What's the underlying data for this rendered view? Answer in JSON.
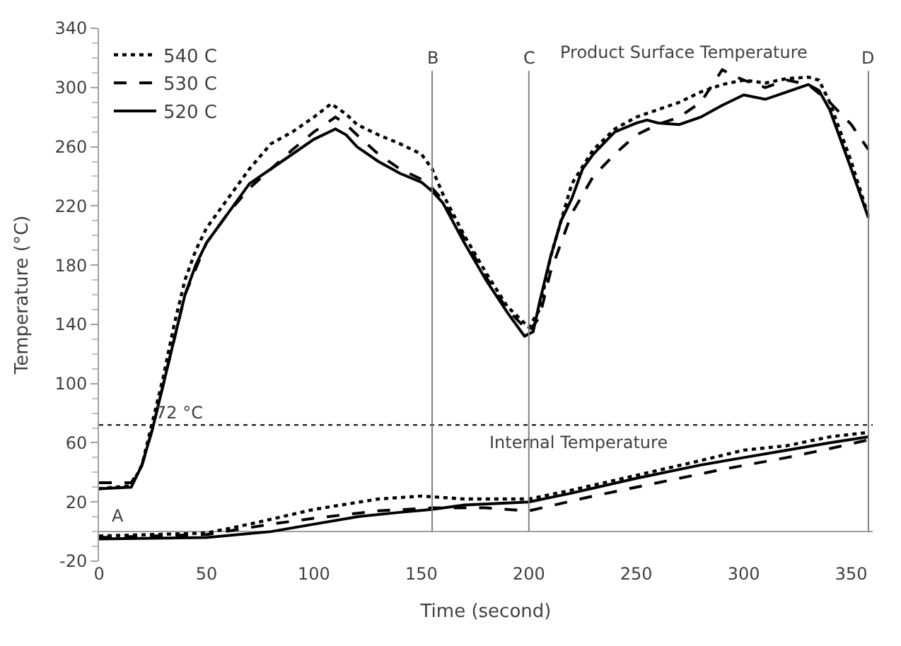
{
  "chart_data": {
    "type": "line",
    "xlabel": "Time (second)",
    "ylabel": "Temperature (°C)",
    "xlim": [
      0,
      360
    ],
    "xticks": [
      0,
      50,
      100,
      150,
      200,
      250,
      300,
      350
    ],
    "ylim": [
      -20,
      340
    ],
    "yticks": [
      -20,
      20,
      60,
      100,
      140,
      180,
      220,
      260,
      300,
      340
    ],
    "legend": "top left",
    "marker": "none",
    "series": [
      {
        "name": "540 C",
        "color": "#000000",
        "line_style": "dotted",
        "x": [
          0,
          15,
          20,
          25,
          30,
          35,
          40,
          45,
          50,
          60,
          70,
          80,
          90,
          100,
          108,
          115,
          120,
          130,
          140,
          150,
          155,
          160,
          170,
          180,
          190,
          200,
          205,
          210,
          220,
          230,
          240,
          250,
          260,
          270,
          280,
          290,
          300,
          310,
          320,
          330,
          335,
          340,
          350,
          358
        ],
        "values": [
          29,
          31,
          45,
          75,
          105,
          140,
          170,
          190,
          205,
          225,
          245,
          262,
          270,
          280,
          289,
          282,
          275,
          268,
          262,
          255,
          245,
          228,
          200,
          175,
          152,
          138,
          150,
          185,
          235,
          258,
          272,
          280,
          285,
          290,
          297,
          302,
          305,
          303,
          306,
          307,
          305,
          290,
          250,
          213
        ]
      },
      {
        "name": "530 C",
        "color": "#000000",
        "line_style": "dashed",
        "x": [
          0,
          15,
          20,
          25,
          30,
          40,
          50,
          60,
          70,
          80,
          90,
          100,
          110,
          115,
          120,
          130,
          140,
          150,
          155,
          160,
          170,
          180,
          190,
          200,
          205,
          210,
          220,
          230,
          240,
          250,
          260,
          270,
          280,
          290,
          295,
          300,
          310,
          320,
          330,
          340,
          350,
          358
        ],
        "values": [
          33,
          33,
          45,
          70,
          100,
          160,
          195,
          215,
          232,
          245,
          258,
          270,
          280,
          275,
          268,
          255,
          245,
          238,
          232,
          224,
          198,
          172,
          150,
          135,
          145,
          175,
          215,
          240,
          255,
          268,
          275,
          280,
          290,
          312,
          308,
          305,
          300,
          305,
          302,
          290,
          275,
          258
        ]
      },
      {
        "name": "520 C",
        "color": "#000000",
        "line_style": "solid",
        "x": [
          0,
          15,
          20,
          25,
          30,
          35,
          40,
          45,
          50,
          55,
          60,
          65,
          70,
          75,
          80,
          90,
          100,
          110,
          115,
          120,
          130,
          140,
          150,
          155,
          160,
          170,
          180,
          190,
          198,
          202,
          205,
          210,
          215,
          220,
          225,
          230,
          240,
          250,
          255,
          260,
          270,
          280,
          290,
          300,
          310,
          320,
          330,
          335,
          340,
          350,
          358
        ],
        "values": [
          29,
          30,
          45,
          70,
          100,
          130,
          160,
          180,
          195,
          205,
          215,
          225,
          235,
          240,
          245,
          255,
          265,
          272,
          268,
          260,
          250,
          242,
          236,
          230,
          222,
          195,
          170,
          148,
          132,
          135,
          155,
          185,
          210,
          225,
          245,
          255,
          270,
          276,
          278,
          276,
          275,
          280,
          288,
          295,
          292,
          297,
          302,
          298,
          285,
          245,
          212
        ]
      },
      {
        "color": "#000000",
        "line_style": "dotted",
        "x": [
          0,
          50,
          70,
          100,
          130,
          150,
          170,
          200,
          220,
          250,
          280,
          300,
          320,
          340,
          358
        ],
        "values": [
          -3,
          -1,
          5,
          15,
          22,
          24,
          22,
          22,
          28,
          38,
          48,
          55,
          58,
          64,
          67
        ]
      },
      {
        "color": "#000000",
        "line_style": "dashed",
        "x": [
          0,
          50,
          80,
          100,
          130,
          155,
          180,
          200,
          230,
          260,
          290,
          320,
          340,
          358
        ],
        "values": [
          -4,
          -2,
          5,
          9,
          14,
          16,
          16,
          14,
          24,
          33,
          42,
          50,
          56,
          62
        ]
      },
      {
        "color": "#000000",
        "line_style": "solid",
        "x": [
          0,
          50,
          80,
          100,
          120,
          140,
          155,
          170,
          200,
          220,
          250,
          280,
          300,
          320,
          340,
          358
        ],
        "values": [
          -5,
          -4,
          0,
          5,
          10,
          13,
          15,
          18,
          20,
          26,
          36,
          45,
          50,
          55,
          60,
          64
        ]
      }
    ],
    "ref_lines": [
      {
        "axis": "y",
        "value": 72,
        "label": "72 °C",
        "line_style": "dotted",
        "color": "#000000"
      },
      {
        "axis": "x",
        "value": 155,
        "label": "B",
        "line_style": "solid",
        "color": "#808080"
      },
      {
        "axis": "x",
        "value": 200,
        "label": "C",
        "line_style": "solid",
        "color": "#808080"
      },
      {
        "axis": "x",
        "value": 358,
        "label": "D",
        "line_style": "solid",
        "color": "#808080"
      }
    ],
    "annotations": [
      "A",
      "Product Surface Temperature",
      "Internal Temperature"
    ]
  }
}
